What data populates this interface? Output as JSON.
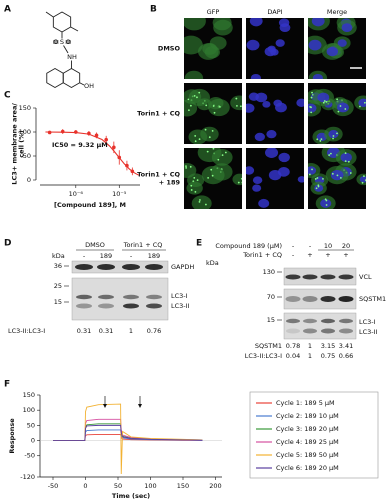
{
  "panel_labels": [
    "A",
    "B",
    "C",
    "D",
    "E",
    "F"
  ],
  "structure": {
    "atoms": [
      "O",
      "S",
      "O",
      "NH",
      "OH"
    ]
  },
  "microscopy": {
    "columns": [
      "GFP",
      "DAPI",
      "Merge"
    ],
    "rows": [
      [
        "DMSO"
      ],
      [
        "Torin1 + CQ"
      ],
      [
        "Torin1 + CQ",
        "+ 189"
      ]
    ]
  },
  "blot_d": {
    "groups": [
      "DMSO",
      "Torin1 + CQ"
    ],
    "kda_header": "kDa",
    "lanes": [
      "-",
      "189",
      "-",
      "189"
    ],
    "markers": [
      "36",
      "25",
      "15"
    ],
    "bands": [
      "GAPDH",
      "LC3-I",
      "LC3-II"
    ],
    "ratio_label": "LC3-II:LC3-I",
    "ratios": [
      0.31,
      0.31,
      1,
      0.76
    ]
  },
  "blot_e": {
    "rows": [
      {
        "label": "Compound 189 (μM)",
        "lanes": [
          "-",
          "-",
          "10",
          "20"
        ]
      },
      {
        "label": "Torin1 + CQ",
        "lanes": [
          "-",
          "+",
          "+",
          "+"
        ]
      }
    ],
    "kda_header": "kDa",
    "markers": [
      "130",
      "70",
      "15"
    ],
    "bands": [
      "VCL",
      "SQSTM1",
      "LC3-I",
      "LC3-II"
    ],
    "quant": [
      {
        "label": "SQSTM1",
        "values": [
          0.78,
          1,
          3.15,
          3.41
        ]
      },
      {
        "label": "LC3-II:LC3-I",
        "values": [
          0.04,
          1,
          0.75,
          0.66
        ]
      }
    ]
  },
  "chart_data": [
    {
      "type": "scatter",
      "ylabel": [
        "LC3+ membrane area/",
        "cell (%)"
      ],
      "xlabel": "[Compound 189], M",
      "annotation": "IC50 = 9.32 μM",
      "xscale": "log",
      "color": "#e8322b",
      "x": [
        2.5e-07,
        5e-07,
        1e-06,
        2e-06,
        3e-06,
        5e-06,
        7.5e-06,
        1e-05,
        1.5e-05,
        2e-05
      ],
      "values": [
        99,
        101,
        100,
        97,
        93,
        84,
        68,
        47,
        30,
        18
      ],
      "errors": [
        3,
        5,
        4,
        5,
        6,
        8,
        12,
        15,
        10,
        8
      ],
      "fit": {
        "x": [
          2e-07,
          5e-07,
          1e-06,
          2e-06,
          4e-06,
          6e-06,
          8e-06,
          1e-05,
          1.3e-05,
          1.7e-05,
          2.2e-05,
          2.8e-05
        ],
        "values": [
          100,
          99.7,
          98.9,
          95.6,
          84.5,
          70.7,
          57.6,
          46.5,
          33.9,
          23.1,
          15.2,
          10
        ]
      },
      "xlim": [
        1.5e-07,
        3e-05
      ],
      "xticks": [
        {
          "value": 1e-06,
          "label": "10⁻⁶"
        },
        {
          "value": 1e-05,
          "label": "10⁻⁵"
        }
      ],
      "ylim": [
        0,
        150
      ],
      "yticks": [
        0,
        50,
        100,
        150
      ]
    },
    {
      "type": "line",
      "xlabel": "Time (sec)",
      "ylabel": "Response",
      "legend": "right",
      "x": [
        -50,
        -1,
        0,
        2,
        20,
        54,
        55,
        57,
        70,
        100,
        150,
        180
      ],
      "series": [
        {
          "name": "Cycle 1: 189  5 μM",
          "color": "#e8423a",
          "values": [
            0,
            0,
            16,
            19,
            20,
            20,
            10,
            5,
            3,
            2,
            1,
            1
          ]
        },
        {
          "name": "Cycle 2: 189 10 μM",
          "color": "#4a7bd0",
          "values": [
            0,
            0,
            28,
            33,
            35,
            35,
            18,
            9,
            5,
            3,
            2,
            1
          ]
        },
        {
          "name": "Cycle 3: 189 20 μM",
          "color": "#3a9a3a",
          "values": [
            0,
            0,
            44,
            52,
            55,
            55,
            28,
            14,
            8,
            5,
            3,
            2
          ]
        },
        {
          "name": "Cycle 4: 189 25 μM",
          "color": "#d64fa0",
          "values": [
            0,
            0,
            56,
            66,
            70,
            70,
            35,
            18,
            10,
            6,
            3,
            2
          ]
        },
        {
          "name": "Cycle 5: 189 50 μM",
          "color": "#f2b233",
          "values": [
            0,
            0,
            95,
            110,
            118,
            120,
            -110,
            30,
            12,
            7,
            4,
            2
          ]
        },
        {
          "name": "Cycle 6: 189 20 μM",
          "color": "#5a3fa0",
          "values": [
            0,
            0,
            40,
            48,
            50,
            50,
            25,
            12,
            7,
            4,
            2,
            1
          ]
        }
      ],
      "xlim": [
        -70,
        210
      ],
      "xticks": [
        -50,
        0,
        50,
        100,
        150,
        200
      ],
      "ylim": [
        -120,
        150
      ],
      "yticks": [
        -120,
        -50,
        0,
        50,
        100,
        150
      ]
    }
  ]
}
